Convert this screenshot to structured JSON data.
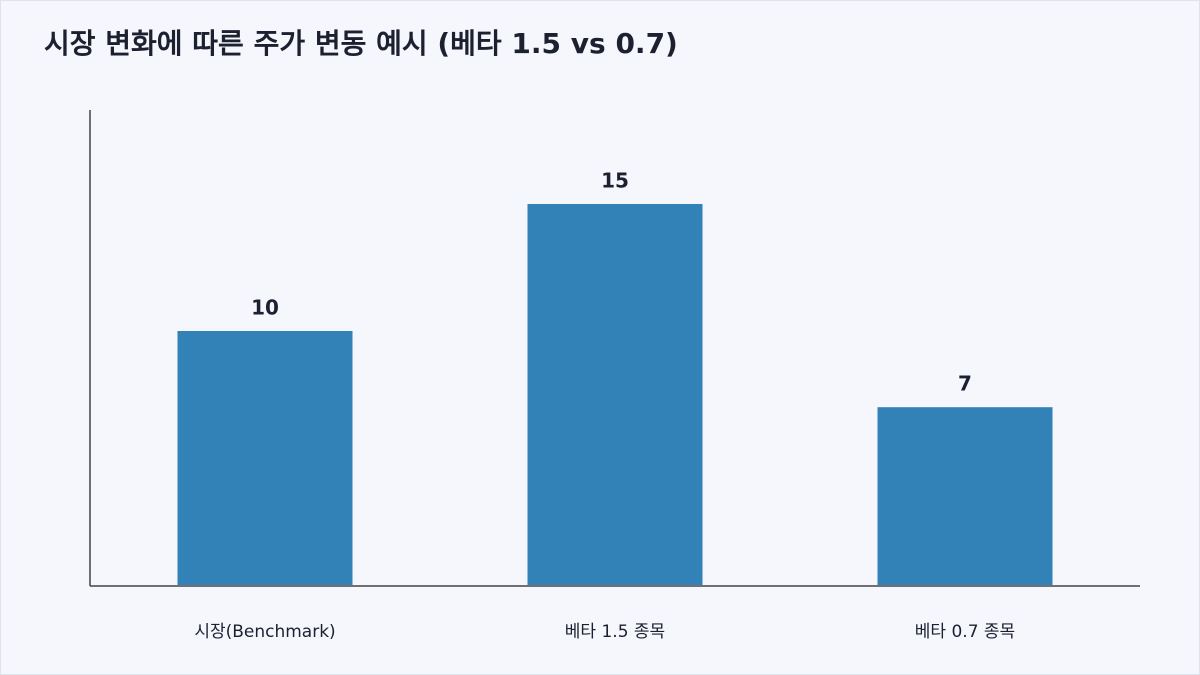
{
  "chart_data": {
    "type": "bar",
    "title": "시장 변화에 따른 주가 변동 예시 (베타 1.5 vs 0.7)",
    "categories": [
      "시장(Benchmark)",
      "베타 1.5 종목",
      "베타 0.7 종목"
    ],
    "values": [
      10,
      15,
      7
    ],
    "color": "#3282b8",
    "ylim": [
      0,
      18.7
    ],
    "grid": false
  }
}
